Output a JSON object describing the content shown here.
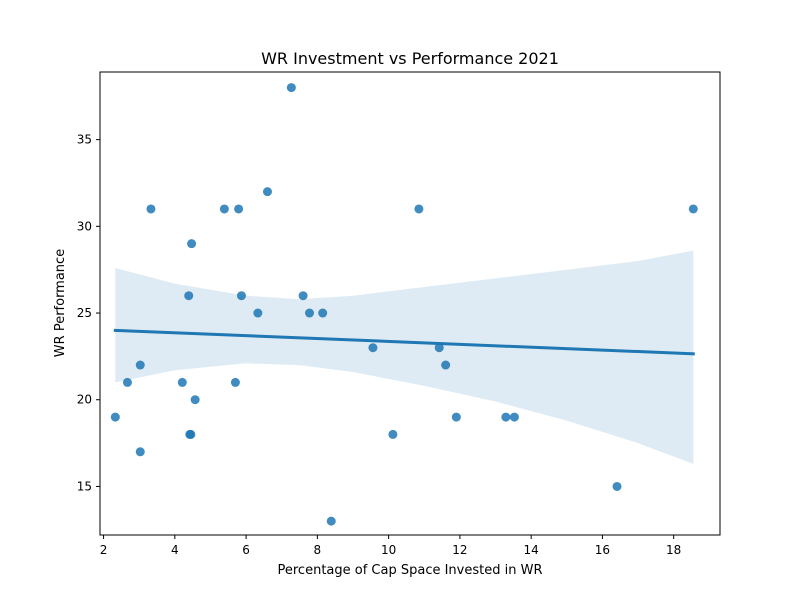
{
  "chart_data": {
    "type": "scatter",
    "title": "WR Investment vs Performance 2021",
    "xlabel": "Percentage of Cap Space Invested in WR",
    "ylabel": "WR Performance",
    "xlim": [
      1.9,
      19.3
    ],
    "ylim": [
      12.2,
      38.9
    ],
    "xticks": [
      2,
      4,
      6,
      8,
      10,
      12,
      14,
      16,
      18
    ],
    "yticks": [
      15,
      20,
      25,
      30,
      35
    ],
    "grid": false,
    "colors": {
      "points": "#1f77b4",
      "line": "#1f77b4",
      "band": "#1f77b4"
    },
    "points": [
      {
        "x": 2.33,
        "y": 19
      },
      {
        "x": 2.67,
        "y": 21
      },
      {
        "x": 3.03,
        "y": 22
      },
      {
        "x": 3.03,
        "y": 17
      },
      {
        "x": 3.33,
        "y": 31
      },
      {
        "x": 4.21,
        "y": 21
      },
      {
        "x": 4.39,
        "y": 26
      },
      {
        "x": 4.42,
        "y": 18
      },
      {
        "x": 4.45,
        "y": 18
      },
      {
        "x": 4.47,
        "y": 29
      },
      {
        "x": 4.57,
        "y": 20
      },
      {
        "x": 5.39,
        "y": 31
      },
      {
        "x": 5.7,
        "y": 21
      },
      {
        "x": 5.79,
        "y": 31
      },
      {
        "x": 5.87,
        "y": 26
      },
      {
        "x": 6.33,
        "y": 25
      },
      {
        "x": 6.6,
        "y": 32
      },
      {
        "x": 7.27,
        "y": 38
      },
      {
        "x": 7.6,
        "y": 26
      },
      {
        "x": 7.78,
        "y": 25
      },
      {
        "x": 8.15,
        "y": 25
      },
      {
        "x": 8.39,
        "y": 13
      },
      {
        "x": 9.56,
        "y": 23
      },
      {
        "x": 10.12,
        "y": 18
      },
      {
        "x": 10.85,
        "y": 31
      },
      {
        "x": 11.42,
        "y": 23
      },
      {
        "x": 11.6,
        "y": 22
      },
      {
        "x": 11.9,
        "y": 19
      },
      {
        "x": 13.29,
        "y": 19
      },
      {
        "x": 13.53,
        "y": 19
      },
      {
        "x": 16.41,
        "y": 15
      },
      {
        "x": 18.55,
        "y": 31
      }
    ],
    "regression_line": {
      "x": [
        2.33,
        18.55
      ],
      "y": [
        24.0,
        22.65
      ]
    },
    "confidence_band": {
      "x": [
        2.33,
        4,
        6,
        7.5,
        9,
        11,
        13,
        15,
        17,
        18.55
      ],
      "upper": [
        27.6,
        26.7,
        26.0,
        25.8,
        26.0,
        26.5,
        27.0,
        27.5,
        28.0,
        28.6
      ],
      "lower": [
        21.0,
        21.7,
        22.1,
        22.0,
        21.6,
        20.8,
        19.9,
        18.8,
        17.5,
        16.3
      ]
    }
  }
}
